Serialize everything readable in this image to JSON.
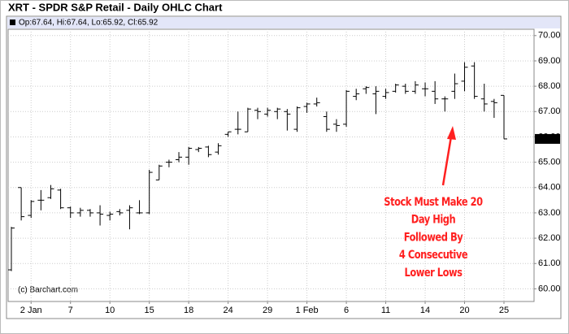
{
  "chart_data": {
    "type": "ohlc",
    "title": "XRT - SPDR S&P Retail - Daily OHLC Chart",
    "header": "Op:67.64, Hi:67.64, Lo:65.92, Cl:65.92",
    "watermark": "(c) Barchart.com",
    "price_tag": "65.92",
    "annotation": [
      "Stock Must Make 20",
      "Day High",
      "Followed By",
      "4 Consecutive",
      "Lower Lows"
    ],
    "annotation_color": "#ff2020",
    "color": "#000000",
    "grid": true,
    "categories": [
      null,
      null,
      "2 Jan",
      null,
      null,
      null,
      "7",
      null,
      null,
      null,
      "10",
      null,
      null,
      null,
      "15",
      null,
      null,
      null,
      "18",
      null,
      null,
      null,
      "24",
      null,
      null,
      null,
      "29",
      null,
      null,
      null,
      "1 Feb",
      null,
      null,
      null,
      "6",
      null,
      null,
      null,
      "11",
      null,
      null,
      null,
      "14",
      null,
      null,
      null,
      "20",
      null,
      null,
      null,
      "25"
    ],
    "open": [
      60.75,
      64.0,
      62.9,
      63.5,
      63.6,
      63.9,
      63.2,
      63.0,
      63.1,
      63.0,
      62.9,
      63.05,
      63.1,
      63.0,
      63.0,
      64.3,
      65.0,
      65.1,
      65.2,
      65.5,
      65.6,
      65.4,
      66.1,
      66.3,
      66.2,
      67.05,
      66.9,
      67.0,
      67.0,
      66.3,
      67.2,
      67.3,
      66.8,
      66.5,
      66.5,
      67.6,
      67.9,
      67.7,
      67.6,
      67.8,
      68.0,
      67.8,
      67.9,
      67.8,
      67.5,
      67.8,
      68.2,
      68.8,
      67.5,
      67.4,
      67.64
    ],
    "high": [
      62.45,
      64.0,
      63.5,
      63.9,
      64.1,
      63.95,
      63.25,
      63.2,
      63.15,
      63.3,
      63.05,
      63.15,
      63.3,
      63.5,
      64.7,
      64.9,
      65.1,
      65.4,
      65.6,
      65.6,
      65.65,
      65.75,
      66.2,
      67.0,
      67.15,
      67.15,
      67.15,
      67.15,
      67.1,
      67.2,
      67.35,
      67.55,
      67.0,
      66.7,
      67.85,
      67.9,
      68.0,
      68.0,
      67.9,
      68.1,
      68.1,
      68.2,
      68.15,
      68.2,
      67.6,
      68.5,
      68.95,
      68.95,
      68.1,
      67.5,
      67.64
    ],
    "low": [
      60.7,
      62.7,
      62.8,
      63.1,
      63.55,
      63.15,
      62.8,
      62.85,
      62.85,
      62.5,
      62.7,
      62.9,
      62.35,
      62.95,
      62.95,
      64.3,
      64.8,
      65.0,
      64.9,
      65.4,
      65.2,
      65.3,
      66.0,
      66.1,
      66.2,
      66.7,
      66.8,
      66.7,
      66.25,
      66.2,
      66.95,
      67.2,
      66.2,
      66.2,
      66.4,
      67.45,
      67.7,
      66.9,
      67.5,
      67.75,
      67.7,
      67.7,
      67.6,
      67.3,
      67.0,
      67.5,
      67.8,
      67.5,
      67.0,
      66.75,
      65.92
    ],
    "close": [
      62.4,
      62.85,
      63.45,
      63.5,
      63.95,
      63.2,
      63.0,
      63.1,
      63.0,
      62.95,
      62.95,
      63.0,
      63.2,
      63.0,
      64.6,
      64.85,
      65.0,
      65.2,
      65.55,
      65.55,
      65.3,
      65.65,
      66.2,
      66.3,
      67.1,
      67.0,
      67.05,
      67.1,
      66.9,
      67.15,
      67.3,
      67.35,
      66.3,
      66.45,
      67.8,
      67.7,
      67.95,
      67.8,
      67.75,
      68.05,
      67.8,
      68.05,
      67.9,
      67.5,
      67.5,
      68.1,
      68.75,
      67.6,
      67.3,
      67.35,
      65.92
    ],
    "ylim": [
      59.5,
      70.25
    ],
    "yticks": [
      {
        "value": 60,
        "label": "60.00"
      },
      {
        "value": 61,
        "label": "61.00"
      },
      {
        "value": 62,
        "label": "62.00"
      },
      {
        "value": 63,
        "label": "63.00"
      },
      {
        "value": 64,
        "label": "64.00"
      },
      {
        "value": 65,
        "label": "65.00"
      },
      {
        "value": 66,
        "label": "66.00"
      },
      {
        "value": 67,
        "label": "67.00"
      },
      {
        "value": 68,
        "label": "68.00"
      },
      {
        "value": 69,
        "label": "69.00"
      },
      {
        "value": 70,
        "label": "70.00"
      }
    ]
  }
}
